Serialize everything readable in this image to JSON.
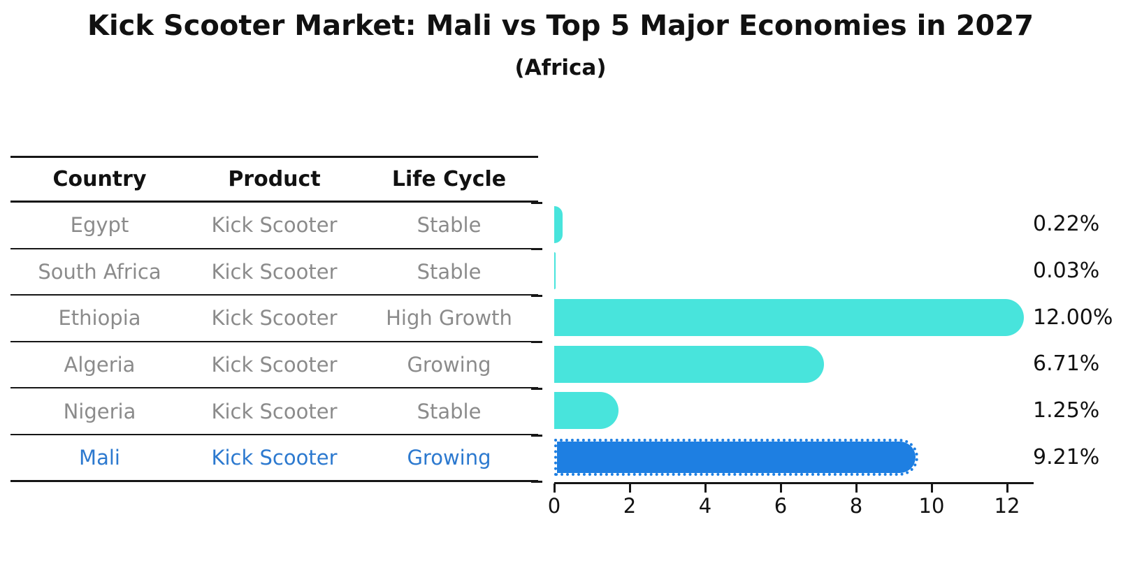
{
  "title": "Kick Scooter Market: Mali vs Top 5 Major Economies in 2027",
  "subtitle": "(Africa)",
  "table": {
    "headers": [
      "Country",
      "Product",
      "Life Cycle"
    ],
    "rows": [
      {
        "country": "Egypt",
        "product": "Kick Scooter",
        "life_cycle": "Stable",
        "highlighted": false
      },
      {
        "country": "South Africa",
        "product": "Kick Scooter",
        "life_cycle": "Stable",
        "highlighted": false
      },
      {
        "country": "Ethiopia",
        "product": "Kick Scooter",
        "life_cycle": "High Growth",
        "highlighted": false
      },
      {
        "country": "Algeria",
        "product": "Kick Scooter",
        "life_cycle": "Growing",
        "highlighted": false
      },
      {
        "country": "Nigeria",
        "product": "Kick Scooter",
        "life_cycle": "Stable",
        "highlighted": false
      },
      {
        "country": "Mali",
        "product": "Kick Scooter",
        "life_cycle": "Growing",
        "highlighted": true
      }
    ]
  },
  "chart_data": {
    "type": "bar",
    "orientation": "horizontal",
    "title": "Kick Scooter Market: Mali vs Top 5 Major Economies in 2027 (Africa)",
    "categories": [
      "Egypt",
      "South Africa",
      "Ethiopia",
      "Algeria",
      "Nigeria",
      "Mali"
    ],
    "values": [
      0.22,
      0.03,
      12.0,
      6.71,
      1.25,
      9.21
    ],
    "value_labels": [
      "0.22%",
      "0.03%",
      "12.00%",
      "6.71%",
      "1.25%",
      "9.21%"
    ],
    "x_ticks": [
      "0",
      "2",
      "4",
      "6",
      "8",
      "10",
      "12"
    ],
    "xlim": [
      0,
      12.7
    ],
    "highlight_index": 5,
    "grid": false,
    "legend": "none",
    "bar_color": "#48E4DC",
    "highlight_bar_color": "#1E7FE2"
  },
  "colors": {
    "bar": "#48E4DC",
    "highlight_bar": "#1E7FE2",
    "highlight_text": "#2C79CF",
    "row_text": "#8B8B8B",
    "axis": "#161616"
  }
}
